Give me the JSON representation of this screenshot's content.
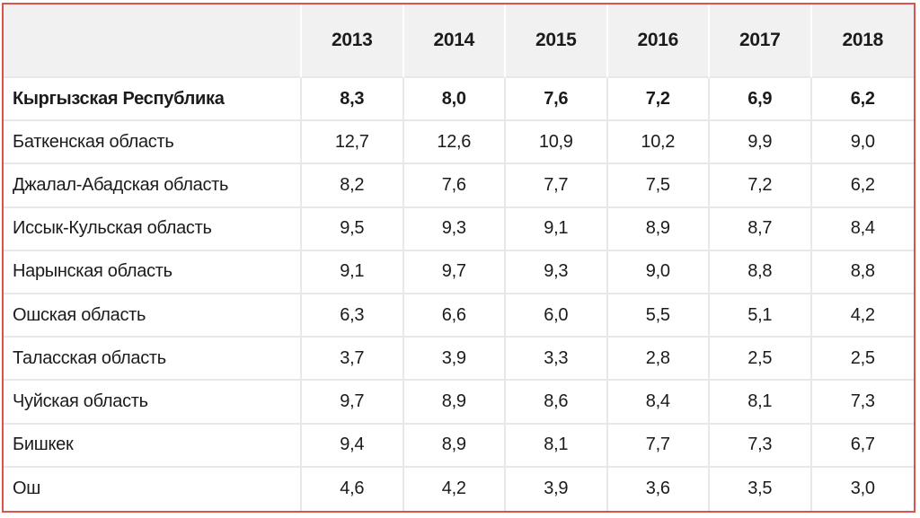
{
  "colors": {
    "frame_border": "#db544b",
    "header_background": "#f1f1f1",
    "gridline": "#e8e8e8",
    "text": "#1b1b1b"
  },
  "table": {
    "corner_header": "",
    "year_headers": [
      "2013",
      "2014",
      "2015",
      "2016",
      "2017",
      "2018"
    ],
    "rows": [
      {
        "label": "Кыргызская Республика",
        "bold": true,
        "values": [
          "8,3",
          "8,0",
          "7,6",
          "7,2",
          "6,9",
          "6,2"
        ]
      },
      {
        "label": "Баткенская область",
        "bold": false,
        "values": [
          "12,7",
          "12,6",
          "10,9",
          "10,2",
          "9,9",
          "9,0"
        ]
      },
      {
        "label": "Джалал-Абадская область",
        "bold": false,
        "values": [
          "8,2",
          "7,6",
          "7,7",
          "7,5",
          "7,2",
          "6,2"
        ]
      },
      {
        "label": "Иссык-Кульская область",
        "bold": false,
        "values": [
          "9,5",
          "9,3",
          "9,1",
          "8,9",
          "8,7",
          "8,4"
        ]
      },
      {
        "label": "Нарынская область",
        "bold": false,
        "values": [
          "9,1",
          "9,7",
          "9,3",
          "9,0",
          "8,8",
          "8,8"
        ]
      },
      {
        "label": "Ошская область",
        "bold": false,
        "values": [
          "6,3",
          "6,6",
          "6,0",
          "5,5",
          "5,1",
          "4,2"
        ]
      },
      {
        "label": "Таласская область",
        "bold": false,
        "values": [
          "3,7",
          "3,9",
          "3,3",
          "2,8",
          "2,5",
          "2,5"
        ]
      },
      {
        "label": "Чуйская область",
        "bold": false,
        "values": [
          "9,7",
          "8,9",
          "8,6",
          "8,4",
          "8,1",
          "7,3"
        ]
      },
      {
        "label": "Бишкек",
        "bold": false,
        "values": [
          "9,4",
          "8,9",
          "8,1",
          "7,7",
          "7,3",
          "6,7"
        ]
      },
      {
        "label": "Ош",
        "bold": false,
        "values": [
          "4,6",
          "4,2",
          "3,9",
          "3,6",
          "3,5",
          "3,0"
        ]
      }
    ]
  },
  "chart_data": {
    "type": "table",
    "title": "",
    "categories": [
      2013,
      2014,
      2015,
      2016,
      2017,
      2018
    ],
    "series": [
      {
        "name": "Кыргызская Республика",
        "values": [
          8.3,
          8.0,
          7.6,
          7.2,
          6.9,
          6.2
        ]
      },
      {
        "name": "Баткенская область",
        "values": [
          12.7,
          12.6,
          10.9,
          10.2,
          9.9,
          9.0
        ]
      },
      {
        "name": "Джалал-Абадская область",
        "values": [
          8.2,
          7.6,
          7.7,
          7.5,
          7.2,
          6.2
        ]
      },
      {
        "name": "Иссык-Кульская область",
        "values": [
          9.5,
          9.3,
          9.1,
          8.9,
          8.7,
          8.4
        ]
      },
      {
        "name": "Нарынская область",
        "values": [
          9.1,
          9.7,
          9.3,
          9.0,
          8.8,
          8.8
        ]
      },
      {
        "name": "Ошская область",
        "values": [
          6.3,
          6.6,
          6.0,
          5.5,
          5.1,
          4.2
        ]
      },
      {
        "name": "Таласская область",
        "values": [
          3.7,
          3.9,
          3.3,
          2.8,
          2.5,
          2.5
        ]
      },
      {
        "name": "Чуйская область",
        "values": [
          9.7,
          8.9,
          8.6,
          8.4,
          8.1,
          7.3
        ]
      },
      {
        "name": "Бишкек",
        "values": [
          9.4,
          8.9,
          8.1,
          7.7,
          7.3,
          6.7
        ]
      },
      {
        "name": "Ош",
        "values": [
          4.6,
          4.2,
          3.9,
          3.6,
          3.5,
          3.0
        ]
      }
    ],
    "decimal_separator": ","
  }
}
